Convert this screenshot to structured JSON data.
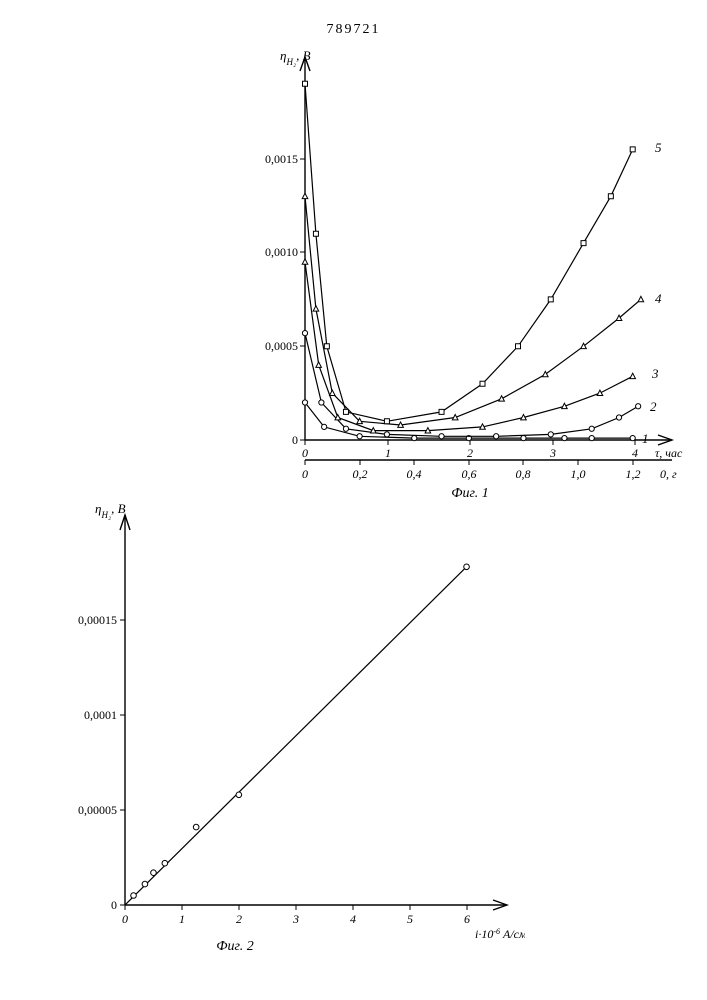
{
  "page_number": "789721",
  "fig1": {
    "type": "line",
    "caption": "Фиг. 1",
    "y_label": "η_{H₂}, В",
    "x_label_bottom": "0, г",
    "x_label_top": "τ, час",
    "title_fontsize": 13,
    "label_fontsize": 13,
    "tick_fontsize": 12,
    "background_color": "#ffffff",
    "axis_color": "#000000",
    "series_color": "#000000",
    "line_width": 1.2,
    "x_ticks_bottom": [
      0,
      0.2,
      0.4,
      0.6,
      0.8,
      1.0,
      1.2
    ],
    "x_ticks_top": [
      0,
      1,
      2,
      3,
      4
    ],
    "xlim_bottom": [
      0,
      1.3
    ],
    "xlim_top": [
      0,
      4.3
    ],
    "y_ticks": [
      0,
      0.0005,
      0.001,
      0.0015
    ],
    "y_tick_labels": [
      "0",
      "0,0005",
      "0,0010",
      "0,0015"
    ],
    "ylim": [
      0,
      0.002
    ],
    "series": [
      {
        "id": "1",
        "label": "1",
        "marker": "circle",
        "points": [
          [
            0.0,
            0.0002
          ],
          [
            0.07,
            7e-05
          ],
          [
            0.2,
            2e-05
          ],
          [
            0.4,
            1e-05
          ],
          [
            0.6,
            1e-05
          ],
          [
            0.8,
            1e-05
          ],
          [
            0.95,
            1e-05
          ],
          [
            1.05,
            1e-05
          ],
          [
            1.2,
            1e-05
          ]
        ]
      },
      {
        "id": "2",
        "label": "2",
        "marker": "circle",
        "points": [
          [
            0.0,
            0.00057
          ],
          [
            0.06,
            0.0002
          ],
          [
            0.15,
            6e-05
          ],
          [
            0.3,
            3e-05
          ],
          [
            0.5,
            2e-05
          ],
          [
            0.7,
            2e-05
          ],
          [
            0.9,
            3e-05
          ],
          [
            1.05,
            6e-05
          ],
          [
            1.15,
            0.00012
          ],
          [
            1.22,
            0.00018
          ]
        ]
      },
      {
        "id": "3",
        "label": "3",
        "marker": "triangle",
        "points": [
          [
            0.0,
            0.00095
          ],
          [
            0.05,
            0.0004
          ],
          [
            0.12,
            0.00012
          ],
          [
            0.25,
            5e-05
          ],
          [
            0.45,
            5e-05
          ],
          [
            0.65,
            7e-05
          ],
          [
            0.8,
            0.00012
          ],
          [
            0.95,
            0.00018
          ],
          [
            1.08,
            0.00025
          ],
          [
            1.2,
            0.00034
          ]
        ]
      },
      {
        "id": "4",
        "label": "4",
        "marker": "triangle",
        "points": [
          [
            0.0,
            0.0013
          ],
          [
            0.04,
            0.0007
          ],
          [
            0.1,
            0.00025
          ],
          [
            0.2,
            0.0001
          ],
          [
            0.35,
            8e-05
          ],
          [
            0.55,
            0.00012
          ],
          [
            0.72,
            0.00022
          ],
          [
            0.88,
            0.00035
          ],
          [
            1.02,
            0.0005
          ],
          [
            1.15,
            0.00065
          ],
          [
            1.23,
            0.00075
          ]
        ]
      },
      {
        "id": "5",
        "label": "5",
        "marker": "square",
        "points": [
          [
            0.0,
            0.0019
          ],
          [
            0.04,
            0.0011
          ],
          [
            0.08,
            0.0005
          ],
          [
            0.15,
            0.00015
          ],
          [
            0.3,
            0.0001
          ],
          [
            0.5,
            0.00015
          ],
          [
            0.65,
            0.0003
          ],
          [
            0.78,
            0.0005
          ],
          [
            0.9,
            0.00075
          ],
          [
            1.02,
            0.00105
          ],
          [
            1.12,
            0.0013
          ],
          [
            1.2,
            0.00155
          ]
        ]
      }
    ]
  },
  "fig2": {
    "type": "line",
    "caption": "Фиг. 2",
    "y_label": "η_{H₂}, В",
    "x_label": "i · 10⁻⁶ А/см²",
    "title_fontsize": 13,
    "label_fontsize": 13,
    "tick_fontsize": 12,
    "background_color": "#ffffff",
    "axis_color": "#000000",
    "series_color": "#000000",
    "marker_color": "#000000",
    "line_width": 1.2,
    "x_ticks": [
      0,
      1,
      2,
      3,
      4,
      5,
      6
    ],
    "xlim": [
      0,
      6.5
    ],
    "y_ticks": [
      0,
      5e-05,
      0.0001,
      0.00015
    ],
    "y_tick_labels": [
      "0",
      "0,00005",
      "0,0001",
      "0,00015"
    ],
    "ylim": [
      0,
      0.0002
    ],
    "line": {
      "start": [
        0,
        0
      ],
      "end": [
        6.0,
        0.000178
      ]
    },
    "points": [
      [
        0.15,
        5e-06
      ],
      [
        0.35,
        1.1e-05
      ],
      [
        0.5,
        1.7e-05
      ],
      [
        0.7,
        2.2e-05
      ],
      [
        1.25,
        4.1e-05
      ],
      [
        2.0,
        5.8e-05
      ],
      [
        6.0,
        0.000178
      ]
    ]
  }
}
